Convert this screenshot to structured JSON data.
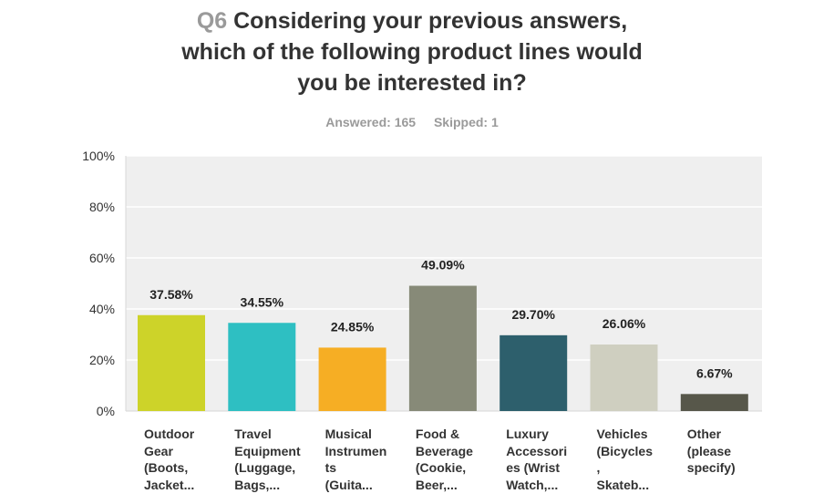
{
  "title": {
    "qnum": "Q6",
    "lines": [
      "Considering your previous answers,",
      "which of the following product lines would",
      "you be interested in?"
    ]
  },
  "stats": {
    "answered": "Answered: 165",
    "skipped": "Skipped: 1"
  },
  "chart_data": {
    "type": "bar",
    "categories": [
      [
        "Outdoor",
        "Gear",
        "(Boots,",
        "Jacket..."
      ],
      [
        "Travel",
        "Equipment",
        "(Luggage,",
        "Bags,..."
      ],
      [
        "Musical",
        "Instrumen",
        "ts",
        "(Guita..."
      ],
      [
        "Food &",
        "Beverage",
        "(Cookie,",
        "Beer,..."
      ],
      [
        "Luxury",
        "Accessori",
        "es (Wrist",
        "Watch,..."
      ],
      [
        "Vehicles",
        "(Bicycles",
        ",",
        "Skateb..."
      ],
      [
        "Other",
        "(please",
        "specify)"
      ]
    ],
    "values": [
      37.58,
      34.55,
      24.85,
      49.09,
      29.7,
      26.06,
      6.67
    ],
    "value_labels": [
      "37.58%",
      "34.55%",
      "24.85%",
      "49.09%",
      "29.70%",
      "26.06%",
      "6.67%"
    ],
    "colors": [
      "#cdd329",
      "#2ebfc2",
      "#f6ae24",
      "#878a78",
      "#2d5f6c",
      "#cfcfc0",
      "#57574a"
    ],
    "yticks": [
      "0%",
      "20%",
      "40%",
      "60%",
      "80%",
      "100%"
    ],
    "ylim": [
      0,
      100
    ],
    "grid": true
  }
}
